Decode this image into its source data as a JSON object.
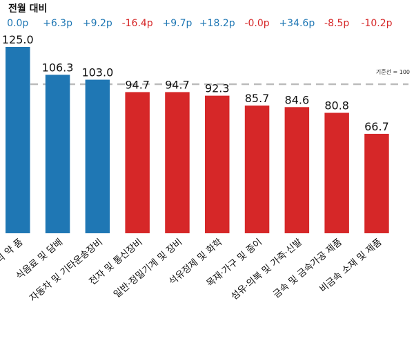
{
  "chart_data": {
    "type": "bar",
    "change_title": "전월 대비",
    "categories": [
      "의 약 품",
      "식음료 및 담배",
      "자동차 및 기타운송장비",
      "전자 및 통신장비",
      "일반·정밀기계 및 장비",
      "석유정제 및 화학",
      "목재·가구 및 종이",
      "섬유·의복 및 가죽·신발",
      "금속 및 금속가공 제품",
      "비금속 소재 및 제품"
    ],
    "values": [
      125.0,
      106.3,
      103.0,
      94.7,
      94.7,
      92.3,
      85.7,
      84.6,
      80.8,
      66.7
    ],
    "value_labels": [
      "125.0",
      "106.3",
      "103.0",
      "94.7",
      "94.7",
      "92.3",
      "85.7",
      "84.6",
      "80.8",
      "66.7"
    ],
    "changes": [
      0.0,
      6.3,
      9.2,
      -16.4,
      9.7,
      18.2,
      -0.0,
      34.6,
      -8.5,
      -10.2
    ],
    "change_labels": [
      "0.0p",
      "+6.3p",
      "+9.2p",
      "-16.4p",
      "+9.7p",
      "+18.2p",
      "-0.0p",
      "+34.6p",
      "-8.5p",
      "-10.2p"
    ],
    "reference_line": {
      "value": 100,
      "label": "기준선 = 100"
    },
    "ylim": [
      0,
      125
    ],
    "colors": {
      "above": "#1f77b4",
      "below": "#d62728",
      "change_up": "#1f77b4",
      "change_down": "#d62728",
      "reference": "#bbbbbb"
    },
    "grid": false,
    "legend": "none"
  }
}
